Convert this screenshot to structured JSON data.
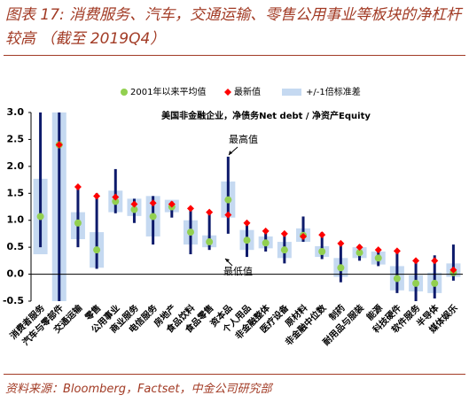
{
  "chart_data": {
    "type": "range-dot",
    "title": "图表 17: 消费服务、汽车，交通运输、零售公用事业等板块的净杠杆较高 （截至 2019Q4）",
    "subtitle": "美国非金融企业，净债务Net debt / 净资产Equity",
    "source": "资料来源：Bloomberg，Factset，中金公司研究部",
    "annotations": [
      "最高值",
      "最低值"
    ],
    "categories": [
      "消费者服务",
      "汽车与零部件",
      "交通运输",
      "零售",
      "公用事业",
      "商业服务",
      "电信服务",
      "房地产",
      "食品饮料",
      "食品零售",
      "资本品",
      "个人用品",
      "非金融整体",
      "医疗设备",
      "原材料",
      "非金融中位数",
      "制药",
      "耐用品与服装",
      "能源",
      "科技硬件",
      "软件服务",
      "半导体",
      "媒体娱乐"
    ],
    "series": [
      {
        "name": "2001年以来平均值",
        "color": "#92d050",
        "values": [
          1.07,
          2.4,
          0.95,
          0.45,
          1.35,
          1.2,
          1.07,
          1.25,
          0.78,
          0.6,
          1.38,
          0.63,
          0.58,
          0.45,
          0.72,
          0.42,
          0.12,
          0.4,
          0.3,
          -0.08,
          -0.17,
          -0.17,
          0.03
        ]
      },
      {
        "name": "最新值",
        "color": "#ff0000",
        "values": [
          null,
          2.4,
          1.62,
          1.45,
          1.43,
          1.3,
          1.32,
          1.3,
          1.22,
          1.15,
          1.1,
          0.95,
          0.8,
          0.75,
          0.7,
          0.73,
          0.57,
          0.5,
          0.45,
          0.43,
          0.25,
          0.25,
          0.08
        ]
      },
      {
        "name": "+/-1倍标准差",
        "color": "#c5d9f1",
        "low": [
          0.37,
          -0.5,
          0.65,
          0.12,
          1.15,
          1.08,
          0.7,
          1.15,
          0.55,
          0.5,
          1.05,
          0.45,
          0.48,
          0.3,
          0.6,
          0.32,
          -0.05,
          0.3,
          0.18,
          -0.3,
          -0.32,
          -0.35,
          -0.05
        ],
        "high": [
          1.77,
          3.0,
          1.15,
          0.78,
          1.55,
          1.4,
          1.45,
          1.38,
          1.0,
          0.72,
          1.72,
          0.82,
          0.7,
          0.6,
          0.85,
          0.52,
          0.3,
          0.5,
          0.42,
          0.15,
          -0.02,
          0.03,
          0.2
        ]
      }
    ],
    "range": {
      "color": "#0d1a6b",
      "max": [
        3.0,
        3.0,
        1.6,
        1.5,
        1.95,
        1.4,
        1.45,
        1.35,
        1.25,
        1.15,
        2.18,
        0.95,
        0.82,
        0.78,
        1.07,
        0.78,
        0.57,
        0.55,
        0.45,
        0.43,
        0.25,
        0.35,
        0.55
      ],
      "min": [
        0.5,
        -0.5,
        0.5,
        0.1,
        1.13,
        0.95,
        0.55,
        1.05,
        0.37,
        0.45,
        0.75,
        0.32,
        0.42,
        0.2,
        0.6,
        0.28,
        -0.15,
        0.25,
        0.15,
        -0.35,
        -0.5,
        -0.45,
        -0.12
      ]
    },
    "ylim": [
      -0.5,
      3.0
    ],
    "yticks": [
      -0.5,
      {
        "value": 0,
        "label": "0.0"
      },
      0.5,
      {
        "value": 1,
        "label": "1.0"
      },
      1.5,
      {
        "value": 2,
        "label": "2.0"
      },
      2.5,
      {
        "value": 3,
        "label": "3.0"
      }
    ]
  }
}
